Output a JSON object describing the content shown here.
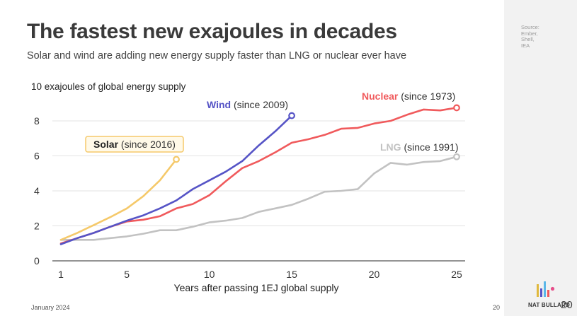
{
  "title": "The fastest new exajoules in decades",
  "subtitle": "Solar and wind are adding new energy supply faster than LNG or nuclear ever have",
  "source": [
    "Source:",
    "Ember,",
    "Shell,",
    "IEA"
  ],
  "footer": {
    "date": "January 2024",
    "page": "20",
    "brand": "NAT BULLARD",
    "brand_number": "20"
  },
  "colors": {
    "solar": "#f5c96a",
    "wind": "#5654c6",
    "nuclear": "#f05a5c",
    "lng": "#c2c2c2",
    "grid": "#e3e3e3",
    "label_bg": "#fff9e8"
  },
  "chart_data": {
    "type": "line",
    "title": "",
    "ylabel": "10 exajoules of global energy supply",
    "xlabel": "Years after passing 1EJ global supply",
    "xlim": [
      1,
      25
    ],
    "ylim": [
      0,
      9
    ],
    "xticks": [
      1,
      5,
      10,
      15,
      20,
      25
    ],
    "yticks": [
      0,
      2,
      4,
      6,
      8
    ],
    "grid": true,
    "series": [
      {
        "key": "lng",
        "name": "LNG",
        "since": "(since 1991)",
        "x": [
          1,
          2,
          3,
          4,
          5,
          6,
          7,
          8,
          9,
          10,
          11,
          12,
          13,
          14,
          15,
          16,
          17,
          18,
          19,
          20,
          21,
          22,
          23,
          24,
          25
        ],
        "values": [
          1.2,
          1.2,
          1.2,
          1.3,
          1.4,
          1.55,
          1.75,
          1.75,
          1.95,
          2.2,
          2.3,
          2.45,
          2.8,
          3.0,
          3.2,
          3.55,
          3.95,
          4.0,
          4.1,
          5.0,
          5.6,
          5.5,
          5.65,
          5.7,
          5.95
        ]
      },
      {
        "key": "nuclear",
        "name": "Nuclear",
        "since": "(since 1973)",
        "x": [
          1,
          2,
          3,
          4,
          5,
          6,
          7,
          8,
          9,
          10,
          11,
          12,
          13,
          14,
          15,
          16,
          17,
          18,
          19,
          20,
          21,
          22,
          23,
          24,
          25
        ],
        "values": [
          1.0,
          1.3,
          1.6,
          1.95,
          2.25,
          2.35,
          2.55,
          3.0,
          3.25,
          3.75,
          4.55,
          5.3,
          5.7,
          6.2,
          6.75,
          6.95,
          7.2,
          7.55,
          7.6,
          7.85,
          8.0,
          8.35,
          8.65,
          8.6,
          8.75
        ]
      },
      {
        "key": "wind",
        "name": "Wind",
        "since": "(since 2009)",
        "x": [
          1,
          2,
          3,
          4,
          5,
          6,
          7,
          8,
          9,
          10,
          11,
          12,
          13,
          14,
          15
        ],
        "values": [
          0.95,
          1.3,
          1.6,
          1.95,
          2.3,
          2.6,
          3.0,
          3.45,
          4.1,
          4.6,
          5.1,
          5.7,
          6.6,
          7.4,
          8.3
        ]
      },
      {
        "key": "solar",
        "name": "Solar",
        "since": "(since 2016)",
        "x": [
          1,
          2,
          3,
          4,
          5,
          6,
          7,
          8
        ],
        "values": [
          1.2,
          1.6,
          2.05,
          2.5,
          3.0,
          3.7,
          4.6,
          5.8
        ]
      }
    ]
  }
}
